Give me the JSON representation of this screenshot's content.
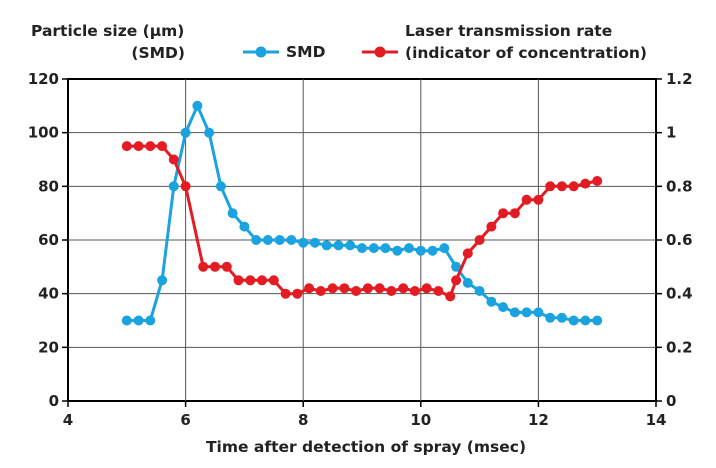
{
  "chart_data": {
    "type": "line",
    "title": "",
    "xlabel": "Time after detection of spray (msec)",
    "ylabel_left": [
      "Particle size (µm)",
      "(SMD)"
    ],
    "ylabel_right": [
      "Laser transmission rate",
      "(indicator of concentration)"
    ],
    "xlim": [
      4,
      14
    ],
    "ylim_left": [
      0,
      120
    ],
    "ylim_right": [
      0,
      1.2
    ],
    "x_ticks": [
      "4",
      "6",
      "8",
      "10",
      "12",
      "14"
    ],
    "y_ticks_left": [
      "0",
      "20",
      "40",
      "60",
      "80",
      "100",
      "120"
    ],
    "y_ticks_right": [
      "0",
      "0.2",
      "0.4",
      "0.6",
      "0.8",
      "1",
      "1.2"
    ],
    "grid": true,
    "legend_position": "top-center",
    "series": [
      {
        "name": "SMD",
        "axis": "left",
        "color": "#1aa3df",
        "x": [
          5.0,
          5.2,
          5.4,
          5.6,
          5.8,
          6.0,
          6.2,
          6.4,
          6.6,
          6.8,
          7.0,
          7.2,
          7.4,
          7.6,
          7.8,
          8.0,
          8.2,
          8.4,
          8.6,
          8.8,
          9.0,
          9.2,
          9.4,
          9.6,
          9.8,
          10.0,
          10.2,
          10.4,
          10.6,
          10.8,
          11.0,
          11.2,
          11.4,
          11.6,
          11.8,
          12.0,
          12.2,
          12.4,
          12.6,
          12.8,
          13.0
        ],
        "values": [
          30,
          30,
          30,
          45,
          80,
          100,
          110,
          100,
          80,
          70,
          65,
          60,
          60,
          60,
          60,
          59,
          59,
          58,
          58,
          58,
          57,
          57,
          57,
          56,
          57,
          56,
          56,
          57,
          50,
          44,
          41,
          37,
          35,
          33,
          33,
          33,
          31,
          31,
          30,
          30,
          30
        ]
      },
      {
        "name": "Laser transmission rate",
        "axis": "right",
        "color": "#e31b23",
        "x": [
          5.0,
          5.2,
          5.4,
          5.6,
          5.8,
          6.0,
          6.3,
          6.5,
          6.7,
          6.9,
          7.1,
          7.3,
          7.5,
          7.7,
          7.9,
          8.1,
          8.3,
          8.5,
          8.7,
          8.9,
          9.1,
          9.3,
          9.5,
          9.7,
          9.9,
          10.1,
          10.3,
          10.5,
          10.6,
          10.8,
          11.0,
          11.2,
          11.4,
          11.6,
          11.8,
          12.0,
          12.2,
          12.4,
          12.6,
          12.8,
          13.0
        ],
        "values": [
          0.95,
          0.95,
          0.95,
          0.95,
          0.9,
          0.8,
          0.5,
          0.5,
          0.5,
          0.45,
          0.45,
          0.45,
          0.45,
          0.4,
          0.4,
          0.42,
          0.41,
          0.42,
          0.42,
          0.41,
          0.42,
          0.42,
          0.41,
          0.42,
          0.41,
          0.42,
          0.41,
          0.39,
          0.45,
          0.55,
          0.6,
          0.65,
          0.7,
          0.7,
          0.75,
          0.75,
          0.8,
          0.8,
          0.8,
          0.81,
          0.82
        ]
      }
    ]
  }
}
